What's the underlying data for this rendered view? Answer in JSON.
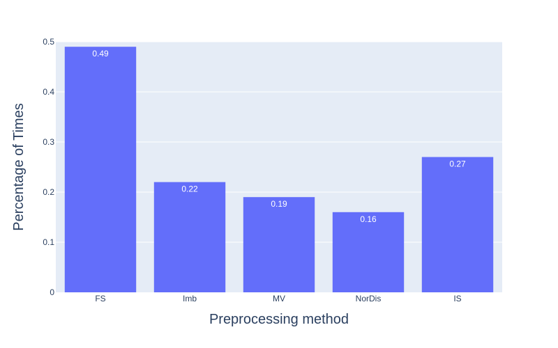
{
  "chart_data": {
    "type": "bar",
    "categories": [
      "FS",
      "Imb",
      "MV",
      "NorDis",
      "IS"
    ],
    "values": [
      0.49,
      0.22,
      0.19,
      0.16,
      0.27
    ],
    "data_labels": [
      "0.49",
      "0.22",
      "0.19",
      "0.16",
      "0.27"
    ],
    "xlabel": "Preprocessing method",
    "ylabel": "Percentage of Times",
    "ylim": [
      0,
      0.5
    ],
    "yticks": [
      0,
      0.1,
      0.2,
      0.3,
      0.4,
      0.5
    ],
    "ytick_labels": [
      "0",
      "0.1",
      "0.2",
      "0.3",
      "0.4",
      "0.5"
    ],
    "grid": true,
    "colors": {
      "bar": "#636efa",
      "plot_bg": "#e5ecf6",
      "grid": "#ffffff",
      "text": "#2a3f5f",
      "label_text": "#ffffff"
    }
  }
}
